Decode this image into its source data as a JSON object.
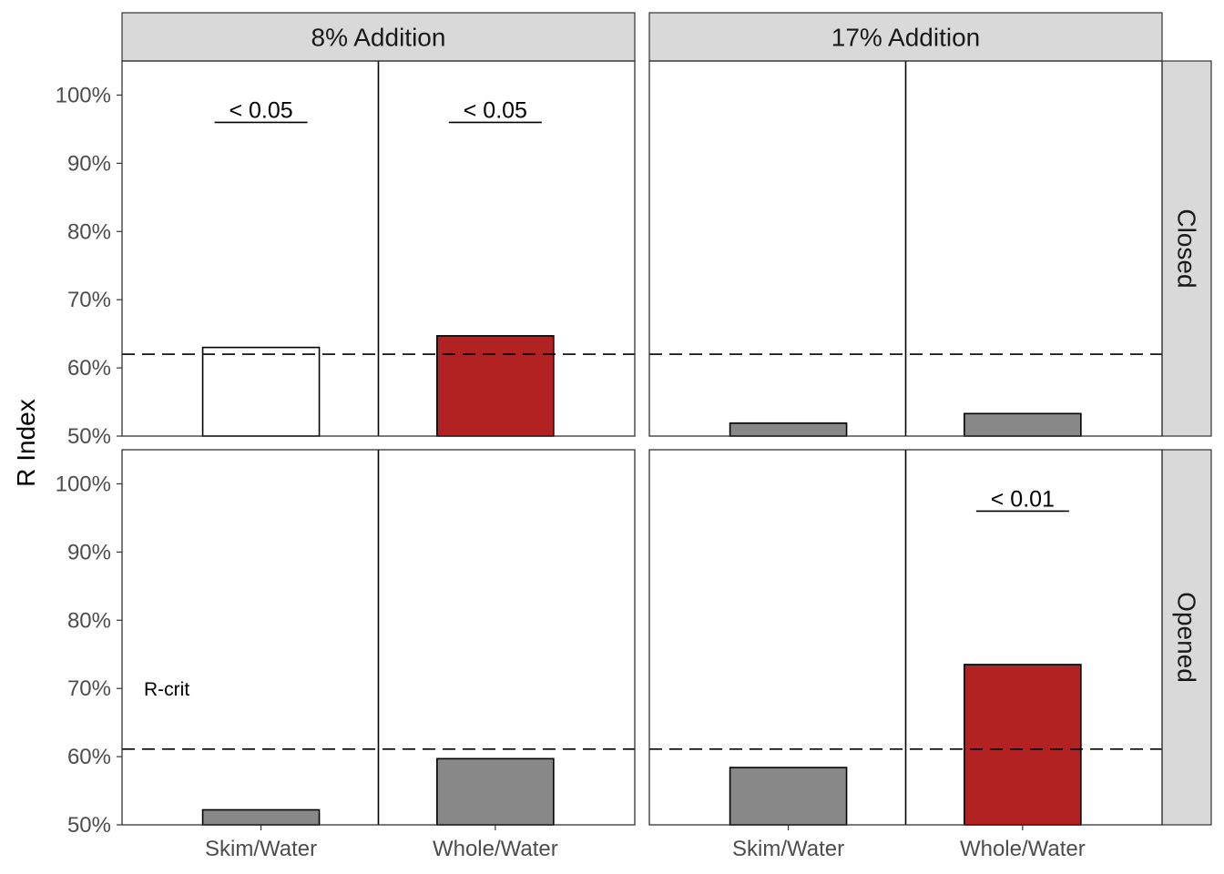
{
  "chart_data": {
    "type": "bar",
    "ylabel": "R Index",
    "y_ticks": [
      "50%",
      "60%",
      "70%",
      "80%",
      "90%",
      "100%"
    ],
    "ylim": [
      0.5,
      1.05
    ],
    "categories": [
      "Skim/Water",
      "Whole/Water"
    ],
    "columns": [
      "8% Addition",
      "17% Addition"
    ],
    "rows": [
      "Closed",
      "Opened"
    ],
    "colors": {
      "significant": "#b22222",
      "not_significant": "#888888",
      "above_crit_only": "#ffffff"
    },
    "panels": [
      {
        "column": "8% Addition",
        "row": "Closed",
        "r_crit": 0.62,
        "bars": [
          {
            "category": "Skim/Water",
            "value": 0.63,
            "fill": "above_crit_only",
            "pvalue_label": "< 0.05"
          },
          {
            "category": "Whole/Water",
            "value": 0.647,
            "fill": "significant",
            "pvalue_label": "< 0.05"
          }
        ]
      },
      {
        "column": "17% Addition",
        "row": "Closed",
        "r_crit": 0.62,
        "bars": [
          {
            "category": "Skim/Water",
            "value": 0.519,
            "fill": "not_significant",
            "pvalue_label": ""
          },
          {
            "category": "Whole/Water",
            "value": 0.533,
            "fill": "not_significant",
            "pvalue_label": ""
          }
        ]
      },
      {
        "column": "8% Addition",
        "row": "Opened",
        "r_crit": 0.611,
        "r_crit_label": "R-crit",
        "bars": [
          {
            "category": "Skim/Water",
            "value": 0.522,
            "fill": "not_significant",
            "pvalue_label": ""
          },
          {
            "category": "Whole/Water",
            "value": 0.597,
            "fill": "not_significant",
            "pvalue_label": ""
          }
        ]
      },
      {
        "column": "17% Addition",
        "row": "Opened",
        "r_crit": 0.611,
        "bars": [
          {
            "category": "Skim/Water",
            "value": 0.584,
            "fill": "not_significant",
            "pvalue_label": ""
          },
          {
            "category": "Whole/Water",
            "value": 0.735,
            "fill": "significant",
            "pvalue_label": "< 0.01"
          }
        ]
      }
    ],
    "pvalue_label_y": 0.96,
    "grid": false,
    "legend": "none"
  }
}
